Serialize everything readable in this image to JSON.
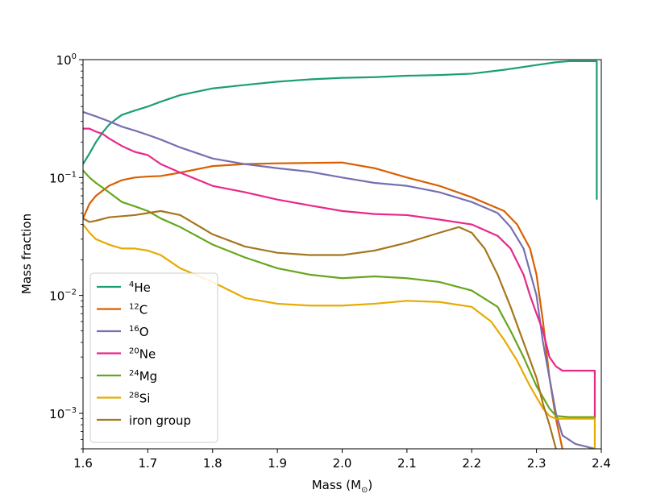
{
  "chart_data": {
    "type": "line",
    "xlabel": "Mass (M",
    "xlabel_symbol": "⊙",
    "xlabel_close": ")",
    "ylabel": "Mass fraction",
    "yscale": "log",
    "xlim": [
      1.6,
      2.4
    ],
    "ylim": [
      0.0005,
      1.0
    ],
    "x_ticks": [
      {
        "value": 1.6,
        "label": "1.6"
      },
      {
        "value": 1.7,
        "label": "1.7"
      },
      {
        "value": 1.8,
        "label": "1.8"
      },
      {
        "value": 1.9,
        "label": "1.9"
      },
      {
        "value": 2.0,
        "label": "2.0"
      },
      {
        "value": 2.1,
        "label": "2.1"
      },
      {
        "value": 2.2,
        "label": "2.2"
      },
      {
        "value": 2.3,
        "label": "2.3"
      },
      {
        "value": 2.4,
        "label": "2.4"
      }
    ],
    "y_ticks": [
      {
        "value": 1.0,
        "base": "10",
        "exp": "0"
      },
      {
        "value": 0.1,
        "base": "10",
        "exp": "−1"
      },
      {
        "value": 0.01,
        "base": "10",
        "exp": "−2"
      },
      {
        "value": 0.001,
        "base": "10",
        "exp": "−3"
      }
    ],
    "legend_position": "lower-left",
    "series": [
      {
        "name": "4He",
        "sup": "4",
        "base": "He",
        "color": "#1b9e77",
        "x": [
          1.6,
          1.61,
          1.62,
          1.63,
          1.64,
          1.65,
          1.66,
          1.68,
          1.7,
          1.72,
          1.75,
          1.8,
          1.85,
          1.9,
          1.95,
          2.0,
          2.05,
          2.1,
          2.15,
          2.2,
          2.25,
          2.3,
          2.33,
          2.35,
          2.38,
          2.393,
          2.393
        ],
        "y": [
          0.13,
          0.16,
          0.2,
          0.24,
          0.28,
          0.31,
          0.34,
          0.37,
          0.4,
          0.44,
          0.5,
          0.57,
          0.61,
          0.65,
          0.68,
          0.7,
          0.71,
          0.73,
          0.74,
          0.76,
          0.82,
          0.9,
          0.95,
          0.97,
          0.97,
          0.97,
          0.065
        ]
      },
      {
        "name": "12C",
        "sup": "12",
        "base": "C",
        "color": "#d95f02",
        "x": [
          1.6,
          1.61,
          1.62,
          1.64,
          1.66,
          1.68,
          1.7,
          1.72,
          1.75,
          1.8,
          1.85,
          1.9,
          1.95,
          2.0,
          2.05,
          2.1,
          2.15,
          2.2,
          2.25,
          2.27,
          2.29,
          2.3,
          2.31,
          2.32,
          2.33,
          2.34
        ],
        "y": [
          0.045,
          0.06,
          0.07,
          0.085,
          0.095,
          0.1,
          0.102,
          0.103,
          0.11,
          0.125,
          0.13,
          0.132,
          0.133,
          0.134,
          0.12,
          0.1,
          0.085,
          0.068,
          0.052,
          0.04,
          0.025,
          0.015,
          0.006,
          0.002,
          0.0009,
          0.0005
        ]
      },
      {
        "name": "16O",
        "sup": "16",
        "base": "O",
        "color": "#7570b3",
        "x": [
          1.6,
          1.62,
          1.64,
          1.66,
          1.68,
          1.7,
          1.72,
          1.75,
          1.8,
          1.85,
          1.9,
          1.95,
          2.0,
          2.05,
          2.1,
          2.15,
          2.2,
          2.24,
          2.26,
          2.28,
          2.3,
          2.31,
          2.32,
          2.33,
          2.34,
          2.36,
          2.39
        ],
        "y": [
          0.36,
          0.33,
          0.3,
          0.27,
          0.25,
          0.23,
          0.21,
          0.18,
          0.145,
          0.13,
          0.12,
          0.112,
          0.1,
          0.09,
          0.085,
          0.075,
          0.062,
          0.05,
          0.038,
          0.025,
          0.01,
          0.004,
          0.002,
          0.001,
          0.00065,
          0.00055,
          0.0005
        ]
      },
      {
        "name": "20Ne",
        "sup": "20",
        "base": "Ne",
        "color": "#e7298a",
        "x": [
          1.6,
          1.61,
          1.62,
          1.63,
          1.64,
          1.66,
          1.68,
          1.7,
          1.72,
          1.75,
          1.8,
          1.85,
          1.9,
          1.95,
          2.0,
          2.05,
          2.1,
          2.15,
          2.2,
          2.24,
          2.26,
          2.28,
          2.29,
          2.3,
          2.31,
          2.32,
          2.33,
          2.34,
          2.35,
          2.36,
          2.39,
          2.39
        ],
        "y": [
          0.26,
          0.26,
          0.245,
          0.235,
          0.215,
          0.185,
          0.165,
          0.155,
          0.13,
          0.11,
          0.085,
          0.075,
          0.065,
          0.058,
          0.052,
          0.049,
          0.048,
          0.044,
          0.04,
          0.032,
          0.025,
          0.015,
          0.01,
          0.007,
          0.005,
          0.003,
          0.0025,
          0.0023,
          0.0023,
          0.0023,
          0.0023,
          0.0009
        ]
      },
      {
        "name": "24Mg",
        "sup": "24",
        "base": "Mg",
        "color": "#66a61e",
        "x": [
          1.6,
          1.61,
          1.62,
          1.64,
          1.66,
          1.68,
          1.7,
          1.72,
          1.75,
          1.8,
          1.85,
          1.9,
          1.95,
          2.0,
          2.05,
          2.1,
          2.15,
          2.2,
          2.24,
          2.26,
          2.28,
          2.3,
          2.32,
          2.33,
          2.35,
          2.39
        ],
        "y": [
          0.115,
          0.1,
          0.09,
          0.075,
          0.062,
          0.057,
          0.052,
          0.045,
          0.038,
          0.027,
          0.021,
          0.017,
          0.015,
          0.014,
          0.0145,
          0.014,
          0.013,
          0.011,
          0.008,
          0.005,
          0.003,
          0.0017,
          0.0011,
          0.00095,
          0.00093,
          0.00093
        ]
      },
      {
        "name": "28Si",
        "sup": "28",
        "base": "Si",
        "color": "#e6ab02",
        "x": [
          1.6,
          1.61,
          1.62,
          1.64,
          1.66,
          1.68,
          1.7,
          1.72,
          1.75,
          1.8,
          1.85,
          1.9,
          1.95,
          2.0,
          2.05,
          2.1,
          2.15,
          2.2,
          2.23,
          2.25,
          2.27,
          2.29,
          2.31,
          2.32,
          2.33,
          2.35,
          2.39,
          2.39
        ],
        "y": [
          0.04,
          0.034,
          0.03,
          0.027,
          0.025,
          0.025,
          0.024,
          0.022,
          0.017,
          0.013,
          0.0095,
          0.0085,
          0.0082,
          0.0082,
          0.0085,
          0.009,
          0.0088,
          0.008,
          0.006,
          0.0042,
          0.0028,
          0.0017,
          0.0011,
          0.00095,
          0.0009,
          0.0009,
          0.0009,
          0.0005
        ]
      },
      {
        "name": "iron group",
        "sup": "",
        "base": "iron group",
        "color": "#a6761d",
        "x": [
          1.6,
          1.61,
          1.62,
          1.64,
          1.66,
          1.68,
          1.7,
          1.72,
          1.75,
          1.8,
          1.85,
          1.9,
          1.95,
          2.0,
          2.05,
          2.1,
          2.15,
          2.18,
          2.2,
          2.22,
          2.24,
          2.26,
          2.28,
          2.3,
          2.31,
          2.32,
          2.33
        ],
        "y": [
          0.045,
          0.042,
          0.043,
          0.046,
          0.047,
          0.048,
          0.05,
          0.052,
          0.048,
          0.033,
          0.026,
          0.023,
          0.022,
          0.022,
          0.024,
          0.028,
          0.034,
          0.038,
          0.034,
          0.025,
          0.015,
          0.008,
          0.004,
          0.002,
          0.0012,
          0.0008,
          0.0005
        ]
      }
    ]
  }
}
